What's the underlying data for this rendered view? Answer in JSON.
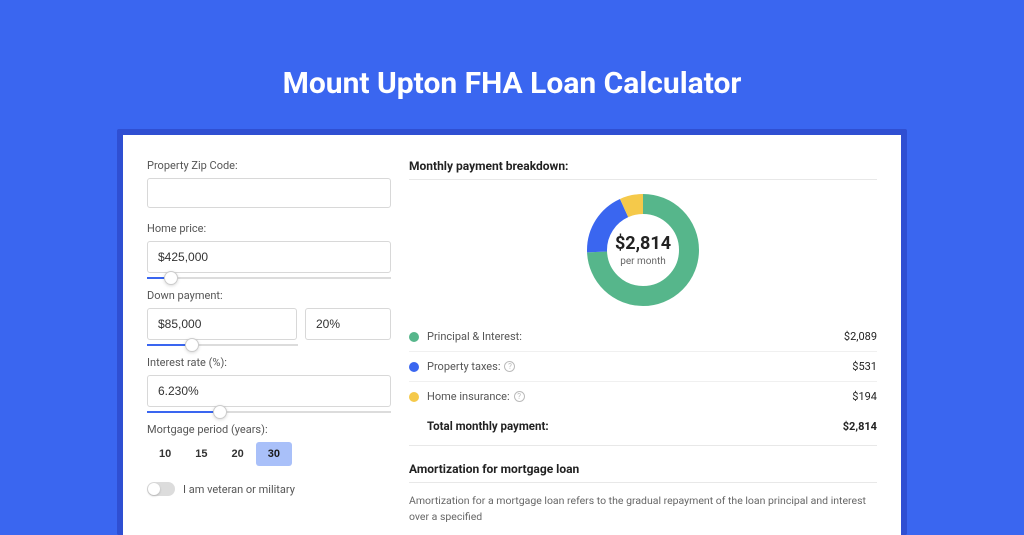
{
  "page": {
    "title": "Mount Upton FHA Loan Calculator",
    "background_color": "#3a66f0",
    "wrap_background": "#2f4fd2",
    "card_background": "#ffffff"
  },
  "form": {
    "zip": {
      "label": "Property Zip Code:",
      "value": ""
    },
    "home_price": {
      "label": "Home price:",
      "value": "$425,000",
      "slider_percent": 10
    },
    "down_payment": {
      "label": "Down payment:",
      "amount": "$85,000",
      "percent": "20%",
      "slider_percent": 20
    },
    "interest_rate": {
      "label": "Interest rate (%):",
      "value": "6.230%",
      "slider_percent": 30
    },
    "mortgage_period": {
      "label": "Mortgage period (years):",
      "options": [
        "10",
        "15",
        "20",
        "30"
      ],
      "active": "30"
    },
    "veteran": {
      "label": "I am veteran or military",
      "on": false
    }
  },
  "breakdown": {
    "title": "Monthly payment breakdown:",
    "donut": {
      "amount": "$2,814",
      "sub": "per month"
    },
    "slices": [
      {
        "label": "Principal & Interest:",
        "color": "#56b68b",
        "amount": "$2,089",
        "pct": 74.2,
        "info": false
      },
      {
        "label": "Property taxes:",
        "color": "#3a66f0",
        "amount": "$531",
        "pct": 18.9,
        "info": true
      },
      {
        "label": "Home insurance:",
        "color": "#f5c94a",
        "amount": "$194",
        "pct": 6.9,
        "info": true
      }
    ],
    "total": {
      "label": "Total monthly payment:",
      "amount": "$2,814"
    }
  },
  "amortization": {
    "title": "Amortization for mortgage loan",
    "text": "Amortization for a mortgage loan refers to the gradual repayment of the loan principal and interest over a specified"
  }
}
